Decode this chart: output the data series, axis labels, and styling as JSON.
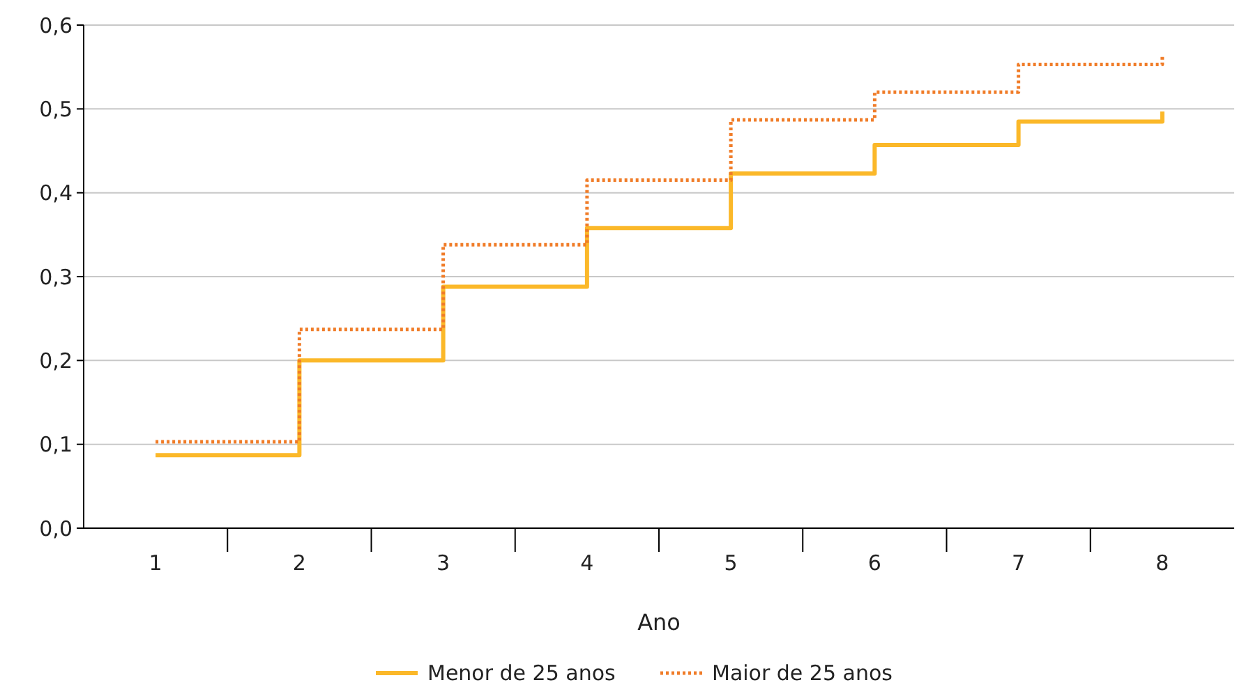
{
  "chart_data": {
    "type": "step",
    "xlabel": "Ano",
    "categories": [
      "1",
      "2",
      "3",
      "4",
      "5",
      "6",
      "7",
      "8"
    ],
    "ylim": [
      0,
      0.6
    ],
    "yticks": [
      {
        "value": 0,
        "label": "0,0"
      },
      {
        "value": 0.1,
        "label": "0,1"
      },
      {
        "value": 0.2,
        "label": "0,2"
      },
      {
        "value": 0.3,
        "label": "0,3"
      },
      {
        "value": 0.4,
        "label": "0,4"
      },
      {
        "value": 0.5,
        "label": "0,5"
      },
      {
        "value": 0.6,
        "label": "0,6"
      }
    ],
    "grid": "y",
    "legend": "bottom",
    "series": [
      {
        "name": "Menor de 25 anos",
        "color": "#fbb829",
        "line_style": "solid",
        "values": [
          0.087,
          0.2,
          0.288,
          0.358,
          0.423,
          0.457,
          0.485,
          0.497
        ]
      },
      {
        "name": "Maior de 25 anos",
        "color": "#f07c28",
        "line_style": "dotted",
        "values": [
          0.103,
          0.237,
          0.338,
          0.415,
          0.487,
          0.52,
          0.553,
          0.565
        ]
      }
    ]
  }
}
